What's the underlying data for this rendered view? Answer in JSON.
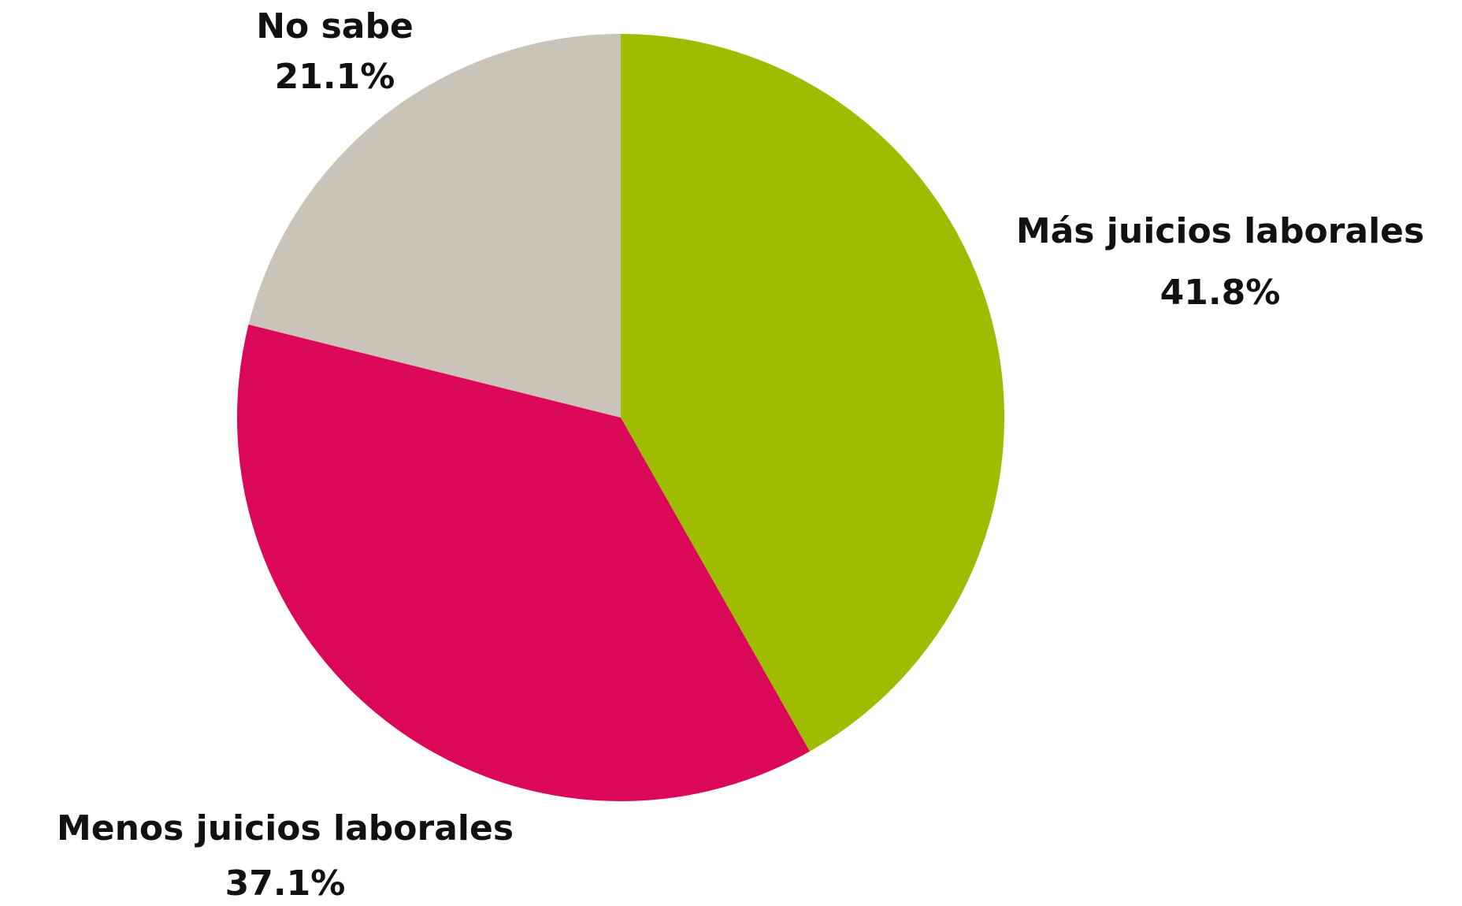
{
  "chart_data": {
    "type": "pie",
    "categories": [
      "Más juicios laborales",
      "Menos juicios laborales",
      "No sabe"
    ],
    "values": [
      41.8,
      37.1,
      21.1
    ],
    "value_labels": [
      "41.8%",
      "37.1%",
      "21.1%"
    ],
    "colors": [
      "#a0bc00",
      "#db0759",
      "#c9c4b7"
    ]
  }
}
